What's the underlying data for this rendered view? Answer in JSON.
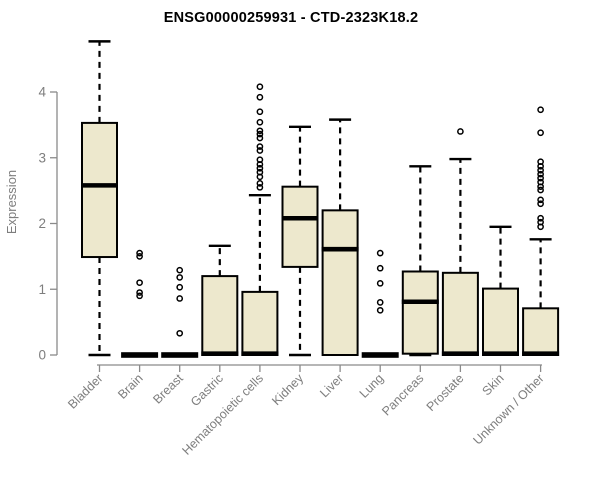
{
  "colors": {
    "box_fill": "#EDE8CD",
    "box_border": "#000000",
    "median": "#000000",
    "whisker": "#000000",
    "outlier": "#000000",
    "axis": "#8a8a8a",
    "tick_label": "#7e7e7e",
    "title": "#000000",
    "background": "#ffffff"
  },
  "chart_data": {
    "type": "boxplot",
    "title": "ENSG00000259931 - CTD-2323K18.2",
    "xlabel": "",
    "ylabel": "Expression",
    "ylim": [
      0,
      4
    ],
    "yticks": [
      0,
      1,
      2,
      3,
      4
    ],
    "grid": false,
    "legend": false,
    "categories": [
      "Bladder",
      "Brain",
      "Breast",
      "Gastric",
      "Hematopoietic cells",
      "Kidney",
      "Liver",
      "Lung",
      "Pancreas",
      "Prostate",
      "Skin",
      "Unknown / Other"
    ],
    "boxes": [
      {
        "category": "Bladder",
        "low": 0,
        "q1": 1.49,
        "median": 2.58,
        "q3": 3.53,
        "high": 4.77,
        "outliers": []
      },
      {
        "category": "Brain",
        "low": 0,
        "q1": 0,
        "median": 0,
        "q3": 0,
        "high": 0,
        "outliers": [
          0.9,
          0.95,
          1.1,
          1.5,
          1.55
        ]
      },
      {
        "category": "Breast",
        "low": 0,
        "q1": 0,
        "median": 0,
        "q3": 0,
        "high": 0,
        "outliers": [
          0.33,
          0.86,
          1.03,
          1.18,
          1.29
        ]
      },
      {
        "category": "Gastric",
        "low": 0,
        "q1": 0,
        "median": 0.02,
        "q3": 1.2,
        "high": 1.66,
        "outliers": []
      },
      {
        "category": "Hematopoietic cells",
        "low": 0,
        "q1": 0,
        "median": 0.02,
        "q3": 0.96,
        "high": 2.43,
        "outliers": [
          2.55,
          2.61,
          2.71,
          2.78,
          2.84,
          2.9,
          2.97,
          3.11,
          3.17,
          3.3,
          3.36,
          3.41,
          3.54,
          3.7,
          3.92,
          4.08
        ]
      },
      {
        "category": "Kidney",
        "low": 0,
        "q1": 1.34,
        "median": 2.08,
        "q3": 2.56,
        "high": 3.47,
        "outliers": []
      },
      {
        "category": "Liver",
        "low": 0,
        "q1": 0,
        "median": 1.61,
        "q3": 2.2,
        "high": 3.58,
        "outliers": []
      },
      {
        "category": "Lung",
        "low": 0,
        "q1": 0,
        "median": 0,
        "q3": 0,
        "high": 0,
        "outliers": [
          0.68,
          0.8,
          1.09,
          1.32,
          1.55
        ]
      },
      {
        "category": "Pancreas",
        "low": 0,
        "q1": 0.02,
        "median": 0.81,
        "q3": 1.27,
        "high": 2.87,
        "outliers": []
      },
      {
        "category": "Prostate",
        "low": 0,
        "q1": 0,
        "median": 0.02,
        "q3": 1.25,
        "high": 2.98,
        "outliers": [
          3.4
        ]
      },
      {
        "category": "Skin",
        "low": 0,
        "q1": 0,
        "median": 0.02,
        "q3": 1.01,
        "high": 1.95,
        "outliers": []
      },
      {
        "category": "Unknown / Other",
        "low": 0,
        "q1": 0,
        "median": 0.02,
        "q3": 0.71,
        "high": 1.76,
        "outliers": [
          1.95,
          2.02,
          2.08,
          2.3,
          2.36,
          2.51,
          2.56,
          2.63,
          2.69,
          2.75,
          2.81,
          2.87,
          2.94,
          3.38,
          3.73
        ]
      }
    ]
  }
}
